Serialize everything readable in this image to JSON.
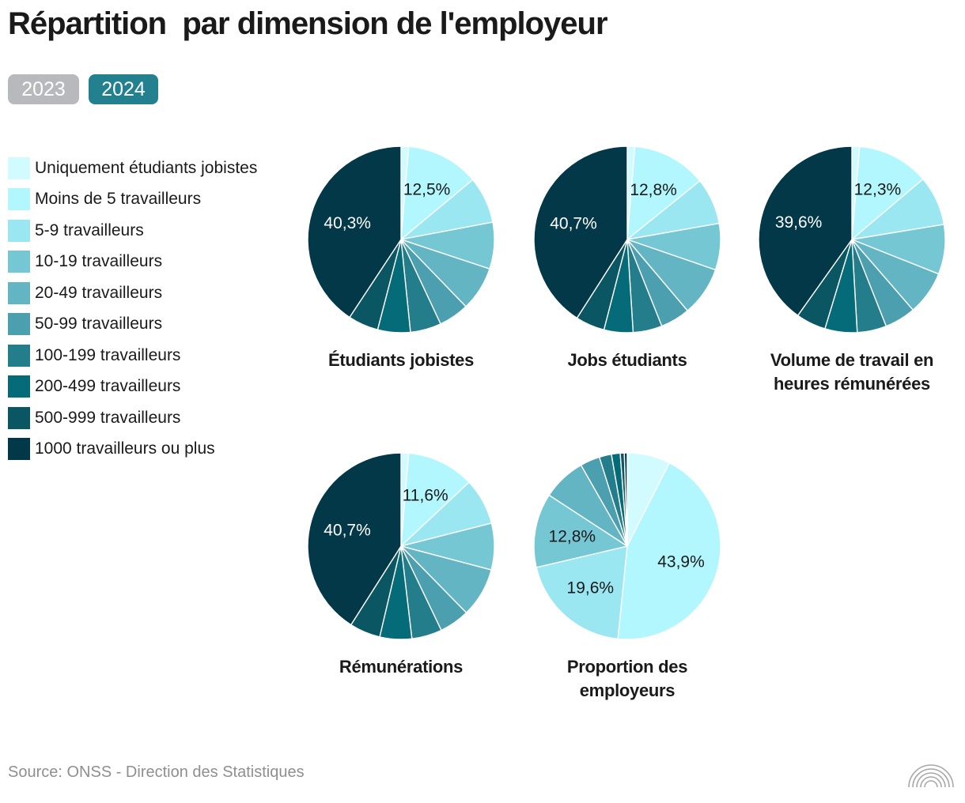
{
  "title": "Répartition  par dimension de l'employeur",
  "tabs": [
    {
      "label": "2023",
      "active": false
    },
    {
      "label": "2024",
      "active": true
    }
  ],
  "source": "Source: ONSS - Direction des Statistiques",
  "logo_icon": "arcs-logo-icon",
  "colors": [
    "#d2fbff",
    "#b2f7fd",
    "#9ae7f2",
    "#76c7d4",
    "#64b5c3",
    "#4b9fae",
    "#237d8a",
    "#066b79",
    "#0b5663",
    "#023848"
  ],
  "chart_data": {
    "type": "pie",
    "categories": [
      "Uniquement étudiants jobistes",
      "Moins de 5 travailleurs",
      "5-9 travailleurs",
      "10-19 travailleurs",
      "20-49 travailleurs",
      "50-99 travailleurs",
      "100-199 travailleurs",
      "200-499 travailleurs",
      "500-999 travailleurs",
      "1000 travailleurs ou plus"
    ],
    "year": "2024",
    "series": [
      {
        "name": "Étudiants jobistes",
        "values": [
          1.3,
          12.5,
          8.0,
          8.0,
          7.6,
          5.2,
          5.3,
          5.6,
          5.2,
          40.3
        ],
        "labels": {
          "1": "12,5%",
          "9": "40,3%"
        }
      },
      {
        "name": "Jobs étudiants",
        "values": [
          1.3,
          12.8,
          8.0,
          8.0,
          8.5,
          5.1,
          5.0,
          5.0,
          5.0,
          40.7
        ],
        "labels": {
          "1": "12,8%",
          "9": "40,7%"
        }
      },
      {
        "name": "Volume de travail en heures rémunérées",
        "values": [
          1.3,
          12.3,
          8.5,
          8.5,
          7.5,
          5.3,
          5.0,
          5.5,
          5.1,
          39.6
        ],
        "labels": {
          "1": "12,3%",
          "9": "39,6%"
        }
      },
      {
        "name": "Rémunérations",
        "values": [
          1.3,
          11.6,
          8.0,
          8.0,
          8.5,
          5.2,
          5.2,
          5.5,
          5.3,
          40.7
        ],
        "labels": {
          "1": "11,6%",
          "9": "40,7%"
        }
      },
      {
        "name": "Proportion des employeurs",
        "values": [
          7.4,
          43.9,
          19.6,
          12.8,
          7.5,
          3.4,
          2.1,
          1.5,
          0.7,
          0.5
        ],
        "labels": {
          "1": "43,9%",
          "2": "19,6%",
          "3": "12,8%"
        }
      }
    ]
  }
}
